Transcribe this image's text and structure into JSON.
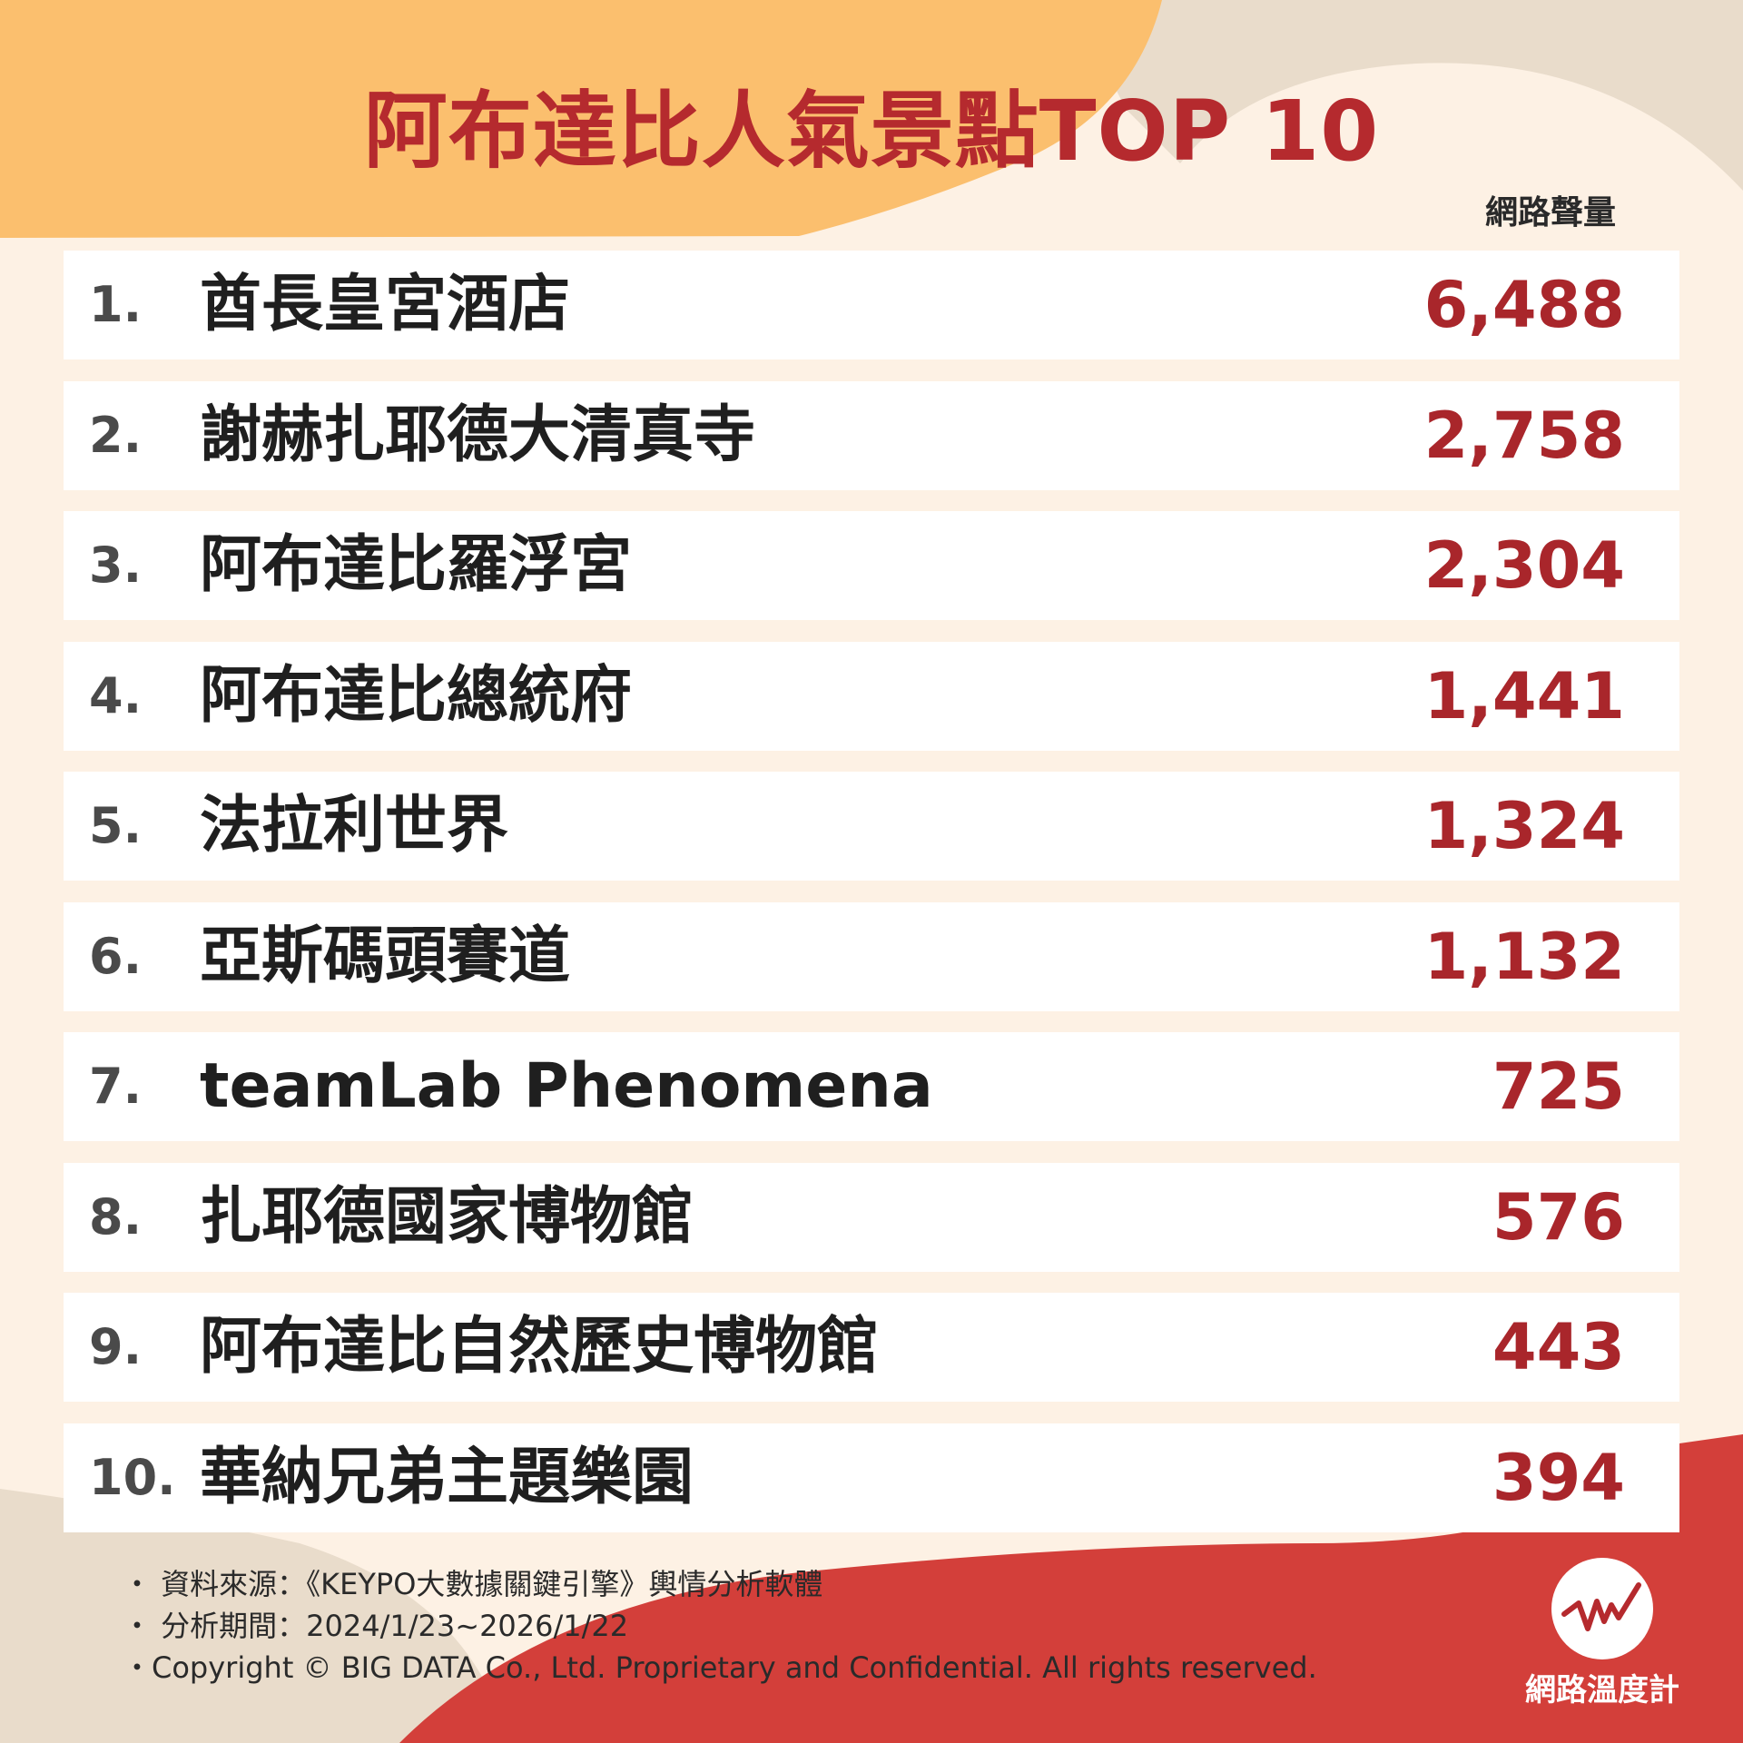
{
  "title": "阿布達比人氣景點TOP 10",
  "column_header": "網路聲量",
  "colors": {
    "background": "#fdf1e4",
    "accent_red": "#b52a2e",
    "value_red": "#a9262b",
    "orange_shape": "#fbbf6e",
    "beige_shape": "#e9dccb",
    "row_bg": "#ffffff"
  },
  "chart_data": {
    "type": "table",
    "title": "阿布達比人氣景點TOP 10",
    "columns": [
      "",
      "",
      "網路聲量"
    ],
    "rows": [
      {
        "rank": "1.",
        "name": "酋長皇宮酒店",
        "value": "6,488"
      },
      {
        "rank": "2.",
        "name": "謝赫扎耶德大清真寺",
        "value": "2,758"
      },
      {
        "rank": "3.",
        "name": "阿布達比羅浮宮",
        "value": "2,304"
      },
      {
        "rank": "4.",
        "name": "阿布達比總統府",
        "value": "1,441"
      },
      {
        "rank": "5.",
        "name": "法拉利世界",
        "value": "1,324"
      },
      {
        "rank": "6.",
        "name": "亞斯碼頭賽道",
        "value": "1,132"
      },
      {
        "rank": "7.",
        "name": "teamLab Phenomena",
        "value": "725"
      },
      {
        "rank": "8.",
        "name": "扎耶德國家博物館",
        "value": "576"
      },
      {
        "rank": "9.",
        "name": "阿布達比自然歷史博物館",
        "value": "443"
      },
      {
        "rank": "10.",
        "name": "華納兄弟主題樂園",
        "value": "394"
      }
    ]
  },
  "footer": {
    "source": "・ 資料來源：《KEYPO大數據關鍵引擎》輿情分析軟體",
    "period": "・ 分析期間：2024/1/23~2026/1/22",
    "copyright": "・Copyright © BIG DATA Co., Ltd. Proprietary and Confidential. All rights reserved."
  },
  "logo": {
    "text": "網路溫度計",
    "icon": "pulse-line-icon"
  }
}
